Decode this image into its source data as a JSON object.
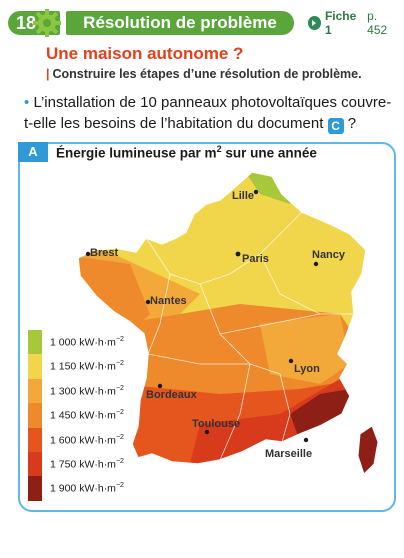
{
  "header": {
    "number": "18",
    "title": "Résolution de problème",
    "fiche_label": "Fiche 1",
    "fiche_page": "p. 452"
  },
  "subtitle": "Une maison autonome ?",
  "instruction": "Construire les étapes d’une résolution de problème.",
  "question": {
    "text": "L’installation de 10 panneaux photovoltaïques couvre-t-elle les besoins de l’habitation du document",
    "doc_ref": "C",
    "end": "?"
  },
  "document": {
    "letter": "A",
    "title": "Énergie lumineuse par m",
    "title_sup": "2",
    "title_end": " sur une année",
    "cities": [
      "Lille",
      "Brest",
      "Paris",
      "Nancy",
      "Nantes",
      "Lyon",
      "Bordeaux",
      "Toulouse",
      "Marseille"
    ],
    "legend": [
      {
        "value": "1 000 kW·h·m",
        "exp": "−2",
        "color": "#a8c83a"
      },
      {
        "value": "1 150 kW·h·m",
        "exp": "−2",
        "color": "#f1d54a"
      },
      {
        "value": "1 300 kW·h·m",
        "exp": "−2",
        "color": "#f2a93a"
      },
      {
        "value": "1 450 kW·h·m",
        "exp": "−2",
        "color": "#ee8a2c"
      },
      {
        "value": "1 600 kW·h·m",
        "exp": "−2",
        "color": "#e5561e"
      },
      {
        "value": "1 750 kW·h·m",
        "exp": "−2",
        "color": "#d83a1c"
      },
      {
        "value": "1 900 kW·h·m",
        "exp": "−2",
        "color": "#8e1f16"
      }
    ]
  },
  "colors": {
    "accent_green": "#5aa63a",
    "accent_red": "#e2411c",
    "accent_blue": "#2f9ad6"
  }
}
